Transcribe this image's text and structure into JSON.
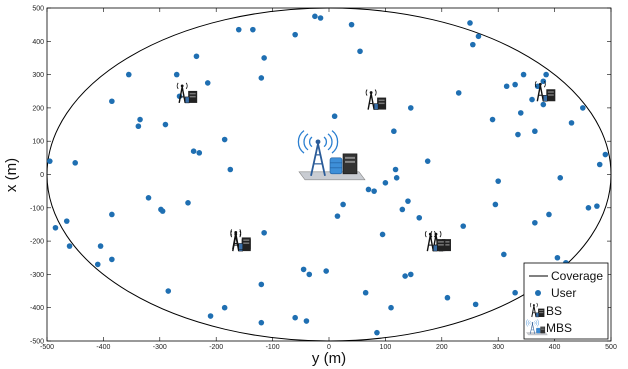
{
  "chart_data": {
    "type": "scatter",
    "title": "",
    "xlabel": "y (m)",
    "ylabel": "x (m)",
    "xlim": [
      -500,
      500
    ],
    "ylim": [
      -500,
      500
    ],
    "xticks": [
      -500,
      -400,
      -300,
      -200,
      -100,
      0,
      100,
      200,
      300,
      400,
      500
    ],
    "yticks": [
      -500,
      -400,
      -300,
      -200,
      -100,
      0,
      100,
      200,
      300,
      400,
      500
    ],
    "grid": false,
    "legend": {
      "placement": "bottom-right",
      "entries": [
        "Coverage",
        "User",
        "BS",
        "MBS"
      ]
    },
    "coverage": {
      "name": "Coverage",
      "center": [
        0,
        0
      ],
      "radius_x": 500,
      "radius_y": 500,
      "color": "#000000"
    },
    "users": {
      "name": "User",
      "color": "#1f6fb2",
      "points": [
        [
          -495,
          40
        ],
        [
          -450,
          35
        ],
        [
          -465,
          -140
        ],
        [
          -460,
          -215
        ],
        [
          -485,
          -160
        ],
        [
          -405,
          -215
        ],
        [
          -410,
          -270
        ],
        [
          -385,
          -255
        ],
        [
          -385,
          -120
        ],
        [
          -385,
          220
        ],
        [
          -355,
          300
        ],
        [
          -335,
          165
        ],
        [
          -338,
          145
        ],
        [
          -320,
          -70
        ],
        [
          -298,
          -105
        ],
        [
          -295,
          -110
        ],
        [
          -290,
          150
        ],
        [
          -285,
          -350
        ],
        [
          -270,
          300
        ],
        [
          -265,
          235
        ],
        [
          -250,
          -85
        ],
        [
          -240,
          70
        ],
        [
          -235,
          355
        ],
        [
          -230,
          65
        ],
        [
          -215,
          275
        ],
        [
          -210,
          -425
        ],
        [
          -185,
          105
        ],
        [
          -185,
          -400
        ],
        [
          -175,
          15
        ],
        [
          -160,
          435
        ],
        [
          -135,
          435
        ],
        [
          -120,
          290
        ],
        [
          -120,
          -330
        ],
        [
          -120,
          -445
        ],
        [
          -115,
          350
        ],
        [
          -115,
          -175
        ],
        [
          -60,
          420
        ],
        [
          -60,
          -430
        ],
        [
          -45,
          -285
        ],
        [
          -40,
          -440
        ],
        [
          -35,
          -300
        ],
        [
          -25,
          475
        ],
        [
          -15,
          470
        ],
        [
          -5,
          -290
        ],
        [
          10,
          175
        ],
        [
          15,
          -125
        ],
        [
          25,
          -90
        ],
        [
          40,
          450
        ],
        [
          55,
          370
        ],
        [
          65,
          -355
        ],
        [
          70,
          -45
        ],
        [
          80,
          -50
        ],
        [
          85,
          -475
        ],
        [
          95,
          -180
        ],
        [
          100,
          -25
        ],
        [
          110,
          -400
        ],
        [
          115,
          130
        ],
        [
          118,
          15
        ],
        [
          120,
          -10
        ],
        [
          130,
          -105
        ],
        [
          135,
          -305
        ],
        [
          140,
          -80
        ],
        [
          145,
          200
        ],
        [
          145,
          -300
        ],
        [
          160,
          -130
        ],
        [
          175,
          40
        ],
        [
          210,
          -370
        ],
        [
          230,
          245
        ],
        [
          238,
          -155
        ],
        [
          250,
          455
        ],
        [
          255,
          390
        ],
        [
          260,
          -390
        ],
        [
          265,
          415
        ],
        [
          290,
          165
        ],
        [
          295,
          -90
        ],
        [
          300,
          -20
        ],
        [
          310,
          -240
        ],
        [
          315,
          265
        ],
        [
          330,
          270
        ],
        [
          335,
          120
        ],
        [
          330,
          -355
        ],
        [
          340,
          185
        ],
        [
          345,
          300
        ],
        [
          360,
          225
        ],
        [
          365,
          130
        ],
        [
          365,
          -145
        ],
        [
          370,
          265
        ],
        [
          380,
          210
        ],
        [
          380,
          280
        ],
        [
          385,
          300
        ],
        [
          390,
          -120
        ],
        [
          405,
          -250
        ],
        [
          410,
          -10
        ],
        [
          415,
          -290
        ],
        [
          420,
          -265
        ],
        [
          430,
          155
        ],
        [
          450,
          200
        ],
        [
          460,
          -100
        ],
        [
          475,
          -95
        ],
        [
          480,
          30
        ],
        [
          490,
          60
        ]
      ]
    },
    "base_stations": {
      "name": "BS",
      "icon": "base-station-icon",
      "positions": [
        [
          -255,
          245
        ],
        [
          380,
          250
        ],
        [
          80,
          225
        ],
        [
          -160,
          -200
        ],
        [
          -160,
          -195
        ],
        [
          195,
          -200
        ],
        [
          185,
          -200
        ]
      ]
    },
    "macro_base_station": {
      "name": "MBS",
      "icon": "macro-base-station-icon",
      "position": [
        0,
        50
      ]
    }
  }
}
